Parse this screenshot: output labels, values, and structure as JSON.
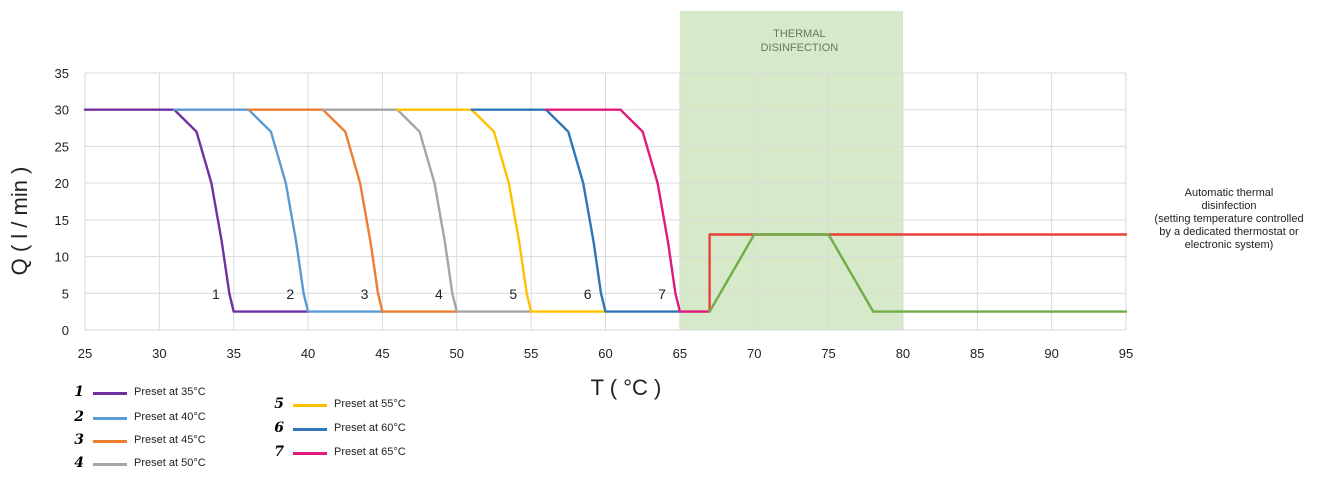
{
  "chart_data": {
    "type": "line",
    "xlabel": "T ( °C )",
    "ylabel": "Q ( l / min )",
    "xlim": [
      25,
      95
    ],
    "ylim": [
      0,
      35
    ],
    "x_ticks": [
      "25",
      "30",
      "35",
      "40",
      "45",
      "50",
      "55",
      "60",
      "65",
      "70",
      "75",
      "80",
      "85",
      "90",
      "95"
    ],
    "y_ticks": [
      "0",
      "5",
      "10",
      "15",
      "20",
      "25",
      "30",
      "35"
    ],
    "grid": true,
    "shaded_region": {
      "label": "THERMAL\nDISINFECTION",
      "x_range": [
        65,
        80
      ],
      "color": "#d6e9c9"
    },
    "series": [
      {
        "name": "Preset at 35°C",
        "number": "1",
        "color": "#7030a0",
        "x": [
          25,
          31,
          32.5,
          33.5,
          34.2,
          34.7,
          35,
          35,
          40
        ],
        "y": [
          30,
          30,
          27,
          20,
          12,
          5,
          2.5,
          2.5,
          2.5
        ]
      },
      {
        "name": "Preset at 40°C",
        "number": "2",
        "color": "#5b9bd5",
        "x": [
          31,
          36,
          37.5,
          38.5,
          39.2,
          39.7,
          40,
          40,
          45
        ],
        "y": [
          30,
          30,
          27,
          20,
          12,
          5,
          2.5,
          2.5,
          2.5
        ]
      },
      {
        "name": "Preset at 45°C",
        "number": "3",
        "color": "#ed7d31",
        "x": [
          36,
          41,
          42.5,
          43.5,
          44.2,
          44.7,
          45,
          45,
          50
        ],
        "y": [
          30,
          30,
          27,
          20,
          12,
          5,
          2.5,
          2.5,
          2.5
        ]
      },
      {
        "name": "Preset at 50°C",
        "number": "4",
        "color": "#a5a5a5",
        "x": [
          41,
          46,
          47.5,
          48.5,
          49.2,
          49.7,
          50,
          50,
          55
        ],
        "y": [
          30,
          30,
          27,
          20,
          12,
          5,
          2.5,
          2.5,
          2.5
        ]
      },
      {
        "name": "Preset at 55°C",
        "number": "5",
        "color": "#ffc000",
        "x": [
          46,
          51,
          52.5,
          53.5,
          54.2,
          54.7,
          55,
          55,
          60
        ],
        "y": [
          30,
          30,
          27,
          20,
          12,
          5,
          2.5,
          2.5,
          2.5
        ]
      },
      {
        "name": "Preset at 60°C",
        "number": "6",
        "color": "#2e75b6",
        "x": [
          51,
          56,
          57.5,
          58.5,
          59.2,
          59.7,
          60,
          60,
          65
        ],
        "y": [
          30,
          30,
          27,
          20,
          12,
          5,
          2.5,
          2.5,
          2.5
        ]
      },
      {
        "name": "Preset at 65°C",
        "number": "7",
        "color": "#e0197d",
        "x": [
          56,
          61,
          62.5,
          63.5,
          64.2,
          64.7,
          65,
          65,
          67
        ],
        "y": [
          30,
          30,
          27,
          20,
          12,
          5,
          2.5,
          2.5,
          2.5
        ]
      },
      {
        "name": "Automatic thermal disinfection",
        "number": "",
        "color": "#e8403a",
        "x": [
          67,
          67,
          95
        ],
        "y": [
          2.5,
          13,
          13
        ]
      },
      {
        "name": "",
        "number": "",
        "color": "#70ad47",
        "x": [
          67,
          70,
          75,
          78,
          95
        ],
        "y": [
          2.5,
          13,
          13,
          2.5,
          2.5
        ]
      }
    ],
    "curve_labels": [
      {
        "text": "1",
        "x": 33.8,
        "y": 4.2
      },
      {
        "text": "2",
        "x": 38.8,
        "y": 4.2
      },
      {
        "text": "3",
        "x": 43.8,
        "y": 4.2
      },
      {
        "text": "4",
        "x": 48.8,
        "y": 4.2
      },
      {
        "text": "5",
        "x": 53.8,
        "y": 4.2
      },
      {
        "text": "6",
        "x": 58.8,
        "y": 4.2
      },
      {
        "text": "7",
        "x": 63.8,
        "y": 4.2
      }
    ],
    "annotation": "Automatic thermal\ndisinfection\n(setting temperature controlled\nby a dedicated thermostat or\nelectronic system)"
  },
  "legend": [
    {
      "number": "1",
      "label": "Preset at 35°C",
      "color": "#7030a0"
    },
    {
      "number": "2",
      "label": "Preset at 40°C",
      "color": "#5b9bd5"
    },
    {
      "number": "3",
      "label": "Preset at 45°C",
      "color": "#ed7d31"
    },
    {
      "number": "4",
      "label": "Preset at 50°C",
      "color": "#a5a5a5"
    },
    {
      "number": "5",
      "label": "Preset at 55°C",
      "color": "#ffc000"
    },
    {
      "number": "6",
      "label": "Preset at 60°C",
      "color": "#2e75b6"
    },
    {
      "number": "7",
      "label": "Preset at 65°C",
      "color": "#e0197d"
    }
  ]
}
